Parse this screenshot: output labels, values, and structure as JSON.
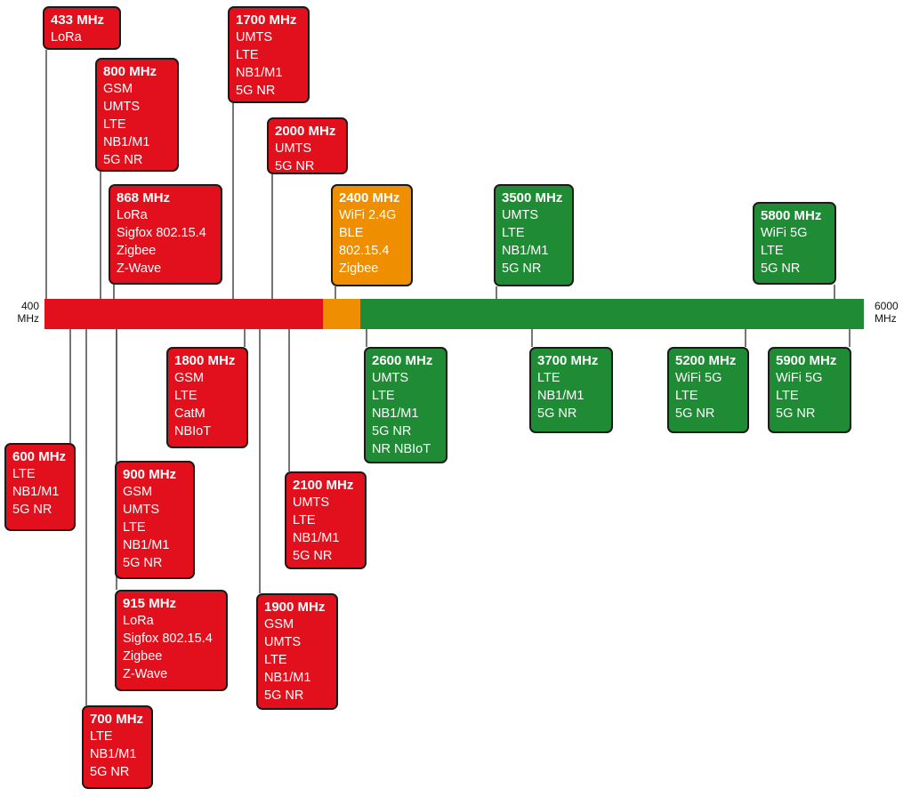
{
  "axis": {
    "min_label": [
      "400",
      "MHz"
    ],
    "max_label": [
      "6000",
      "MHz"
    ]
  },
  "colors": {
    "red": "#e2101c",
    "orange": "#ef8f00",
    "green": "#1f8c35"
  },
  "bands": [
    {
      "freq": "433 MHz",
      "techs": [
        "LoRa"
      ],
      "color": "red"
    },
    {
      "freq": "800 MHz",
      "techs": [
        "GSM",
        "UMTS",
        "LTE",
        "NB1/M1",
        "5G NR"
      ],
      "color": "red"
    },
    {
      "freq": "868 MHz",
      "techs": [
        "LoRa",
        "Sigfox 802.15.4",
        "Zigbee",
        "Z-Wave"
      ],
      "color": "red"
    },
    {
      "freq": "1700 MHz",
      "techs": [
        "UMTS",
        "LTE",
        "NB1/M1",
        "5G NR"
      ],
      "color": "red"
    },
    {
      "freq": "2000 MHz",
      "techs": [
        "UMTS",
        "5G NR"
      ],
      "color": "red"
    },
    {
      "freq": "2400 MHz",
      "techs": [
        "WiFi 2.4G",
        "BLE",
        "802.15.4",
        "Zigbee"
      ],
      "color": "orange"
    },
    {
      "freq": "3500 MHz",
      "techs": [
        "UMTS",
        "LTE",
        "NB1/M1",
        "5G NR"
      ],
      "color": "green"
    },
    {
      "freq": "5800 MHz",
      "techs": [
        "WiFi 5G",
        "LTE",
        "5G NR"
      ],
      "color": "green"
    },
    {
      "freq": "600 MHz",
      "techs": [
        "LTE",
        "NB1/M1",
        "5G NR"
      ],
      "color": "red"
    },
    {
      "freq": "700 MHz",
      "techs": [
        "LTE",
        "NB1/M1",
        "5G NR"
      ],
      "color": "red"
    },
    {
      "freq": "900 MHz",
      "techs": [
        "GSM",
        "UMTS",
        "LTE",
        "NB1/M1",
        "5G NR"
      ],
      "color": "red"
    },
    {
      "freq": "915 MHz",
      "techs": [
        "LoRa",
        "Sigfox 802.15.4",
        "Zigbee",
        "Z-Wave"
      ],
      "color": "red"
    },
    {
      "freq": "1800 MHz",
      "techs": [
        "GSM",
        "LTE",
        "CatM",
        "NBIoT"
      ],
      "color": "red"
    },
    {
      "freq": "1900 MHz",
      "techs": [
        "GSM",
        "UMTS",
        "LTE",
        "NB1/M1",
        "5G NR"
      ],
      "color": "red"
    },
    {
      "freq": "2100 MHz",
      "techs": [
        "UMTS",
        "LTE",
        "NB1/M1",
        "5G NR"
      ],
      "color": "red"
    },
    {
      "freq": "2600 MHz",
      "techs": [
        "UMTS",
        "LTE",
        "NB1/M1",
        "5G NR",
        "NR NBIoT"
      ],
      "color": "green"
    },
    {
      "freq": "3700 MHz",
      "techs": [
        "LTE",
        "NB1/M1",
        "5G NR"
      ],
      "color": "green"
    },
    {
      "freq": "5200 MHz",
      "techs": [
        "WiFi 5G",
        "LTE",
        "5G NR"
      ],
      "color": "green"
    },
    {
      "freq": "5900 MHz",
      "techs": [
        "WiFi 5G",
        "LTE",
        "5G NR"
      ],
      "color": "green"
    }
  ]
}
